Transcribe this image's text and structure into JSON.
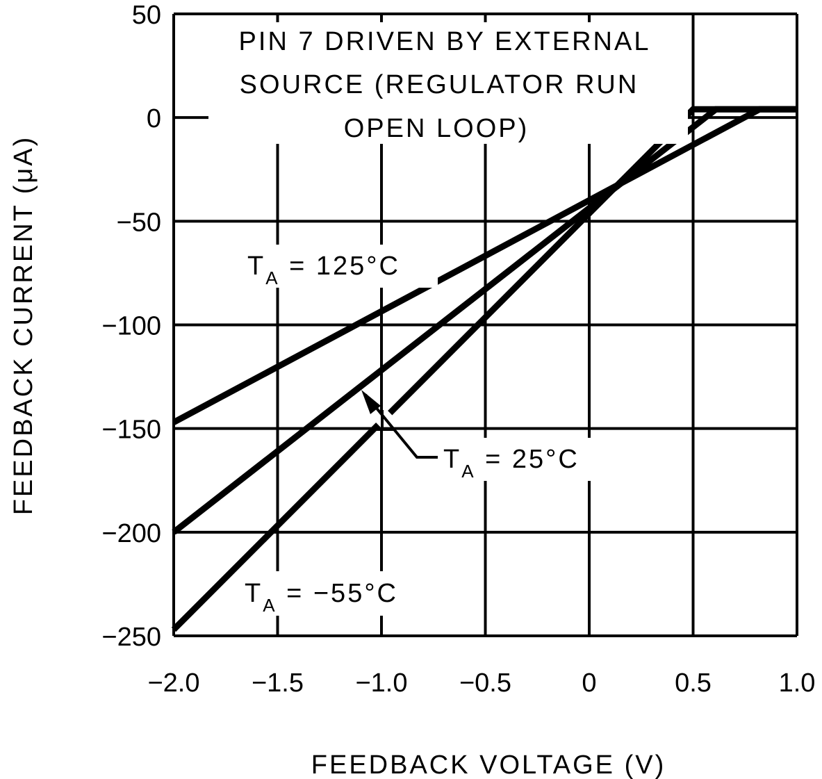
{
  "chart_data": {
    "type": "line",
    "title": "",
    "xlabel": "FEEDBACK VOLTAGE (V)",
    "ylabel": "FEEDBACK CURRENT (μA)",
    "xlim": [
      -2.0,
      1.0
    ],
    "ylim": [
      -250,
      50
    ],
    "grid": true,
    "x_ticks": [
      -2.0,
      -1.5,
      -1.0,
      -0.5,
      0,
      0.5,
      1.0
    ],
    "x_tick_labels": [
      "-2.0",
      "-1.5",
      "-1.0",
      "-0.5",
      "0",
      "0.5",
      "1.0"
    ],
    "y_ticks": [
      50,
      0,
      -50,
      -100,
      -150,
      -200,
      -250
    ],
    "y_tick_labels": [
      "50",
      "0",
      "-50",
      "-100",
      "-150",
      "-200",
      "-250"
    ],
    "note": [
      "PIN 7 DRIVEN BY EXTERNAL",
      "SOURCE (REGULATOR RUN",
      "OPEN LOOP)"
    ],
    "series": [
      {
        "name": "TA = 125°C",
        "label_main": "T",
        "label_sub": "A",
        "label_rest": " = 125°C",
        "x": [
          -2.0,
          0.82,
          1.0
        ],
        "y": [
          -147,
          4,
          4
        ]
      },
      {
        "name": "TA = 25°C",
        "label_main": "T",
        "label_sub": "A",
        "label_rest": " = 25°C",
        "x": [
          -2.0,
          0.61,
          1.0
        ],
        "y": [
          -200,
          4,
          4
        ]
      },
      {
        "name": "TA = -55°C",
        "label_main": "T",
        "label_sub": "A",
        "label_rest": " = −55°C",
        "x": [
          -2.0,
          0.5,
          1.0
        ],
        "y": [
          -247,
          4,
          4
        ]
      }
    ],
    "line_color": "#000000",
    "background": "#ffffff"
  }
}
